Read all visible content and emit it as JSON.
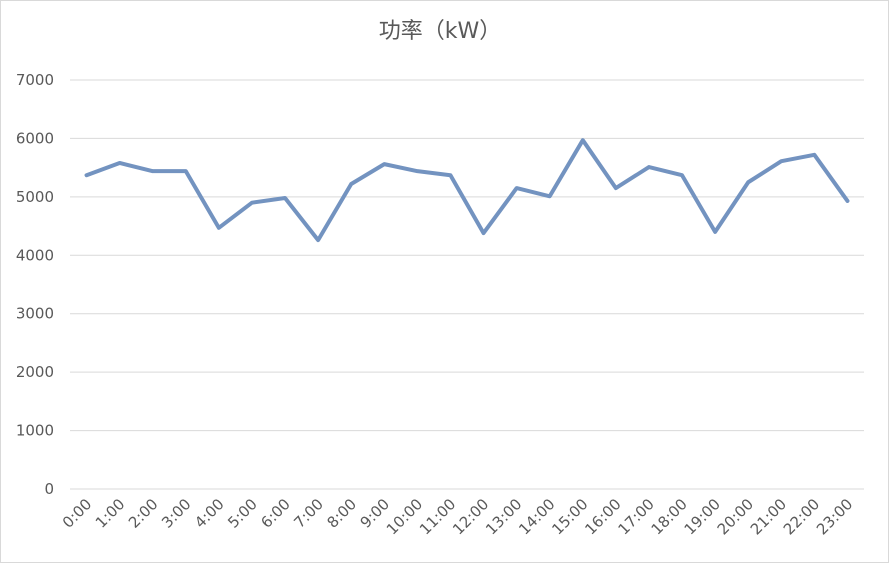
{
  "chart_data": {
    "type": "line",
    "title": "功率（kW）",
    "categories": [
      "0:00",
      "1:00",
      "2:00",
      "3:00",
      "4:00",
      "5:00",
      "6:00",
      "7:00",
      "8:00",
      "9:00",
      "10:00",
      "11:00",
      "12:00",
      "13:00",
      "14:00",
      "15:00",
      "16:00",
      "17:00",
      "18:00",
      "19:00",
      "20:00",
      "21:00",
      "22:00",
      "23:00"
    ],
    "values": [
      5370,
      5580,
      5440,
      5440,
      4470,
      4900,
      4980,
      4260,
      5220,
      5560,
      5440,
      5370,
      4380,
      5150,
      5010,
      5970,
      5150,
      5510,
      5370,
      4400,
      5250,
      5610,
      5720,
      4930
    ],
    "color": "#7393c0",
    "ylim": [
      0,
      7000
    ],
    "yticks": [
      0,
      1000,
      2000,
      3000,
      4000,
      5000,
      6000,
      7000
    ],
    "grid": true
  }
}
